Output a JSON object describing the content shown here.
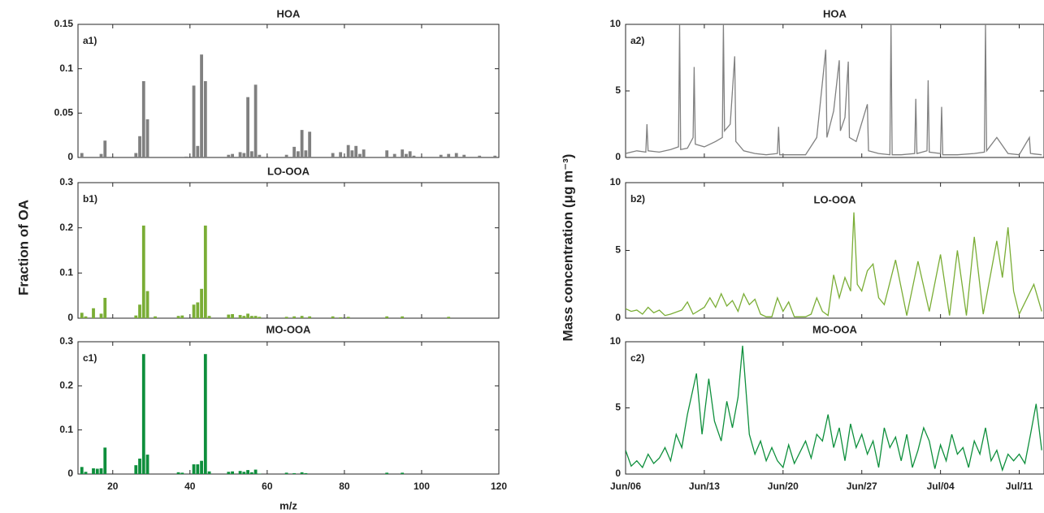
{
  "chart_data": [
    {
      "type": "bar",
      "title": "HOA",
      "label": "a1)",
      "color": "#808080",
      "x": [
        12,
        17,
        18,
        26,
        27,
        28,
        29,
        39,
        41,
        42,
        43,
        44,
        50,
        51,
        53,
        54,
        55,
        56,
        57,
        58,
        65,
        67,
        68,
        69,
        70,
        71,
        77,
        79,
        81,
        82,
        83,
        84,
        85,
        91,
        93,
        95,
        96,
        97,
        98,
        105,
        107,
        109,
        111,
        115,
        119
      ],
      "values": [
        0.005,
        0.004,
        0.019,
        0.005,
        0.024,
        0.086,
        0.043,
        0.001,
        0.081,
        0.013,
        0.116,
        0.086,
        0.003,
        0.004,
        0.006,
        0.005,
        0.068,
        0.007,
        0.082,
        0.003,
        0.003,
        0.012,
        0.007,
        0.031,
        0.008,
        0.029,
        0.005,
        0.006,
        0.014,
        0.008,
        0.013,
        0.004,
        0.009,
        0.008,
        0.004,
        0.009,
        0.004,
        0.007,
        0.002,
        0.003,
        0.004,
        0.005,
        0.003,
        0.002,
        0.002
      ],
      "xlim": [
        11,
        120
      ],
      "ylim": [
        0,
        0.15
      ],
      "yticks": [
        0,
        0.05,
        0.1,
        0.15
      ],
      "xticks": [
        20,
        40,
        60,
        80,
        100,
        120
      ],
      "xtick_labels": false
    },
    {
      "type": "bar",
      "title": "LO-OOA",
      "label": "b1)",
      "color": "#7aad35",
      "ylabel": "Fraction of OA",
      "x": [
        12,
        13,
        15,
        17,
        18,
        26,
        27,
        28,
        29,
        31,
        37,
        38,
        41,
        42,
        43,
        44,
        45,
        50,
        51,
        53,
        54,
        55,
        56,
        57,
        58,
        65,
        67,
        69,
        71,
        77,
        79,
        81,
        91,
        95,
        107
      ],
      "values": [
        0.012,
        0.004,
        0.022,
        0.01,
        0.045,
        0.006,
        0.03,
        0.205,
        0.06,
        0.004,
        0.005,
        0.006,
        0.03,
        0.035,
        0.065,
        0.205,
        0.005,
        0.008,
        0.009,
        0.007,
        0.005,
        0.01,
        0.005,
        0.005,
        0.003,
        0.003,
        0.004,
        0.005,
        0.004,
        0.004,
        0.002,
        0.003,
        0.004,
        0.004,
        0.003
      ],
      "xlim": [
        11,
        120
      ],
      "ylim": [
        0,
        0.3
      ],
      "yticks": [
        0,
        0.1,
        0.2,
        0.3
      ],
      "xticks": [
        20,
        40,
        60,
        80,
        100,
        120
      ],
      "xtick_labels": false
    },
    {
      "type": "bar",
      "title": "MO-OOA",
      "label": "c1)",
      "color": "#0e8f3c",
      "xlabel": "m/z",
      "x": [
        12,
        13,
        15,
        16,
        17,
        18,
        26,
        27,
        28,
        29,
        37,
        38,
        41,
        42,
        43,
        44,
        45,
        50,
        51,
        53,
        54,
        55,
        56,
        57,
        58,
        65,
        67,
        69,
        70,
        91,
        95
      ],
      "values": [
        0.016,
        0.005,
        0.013,
        0.012,
        0.013,
        0.06,
        0.02,
        0.035,
        0.272,
        0.044,
        0.004,
        0.003,
        0.022,
        0.022,
        0.03,
        0.272,
        0.006,
        0.005,
        0.006,
        0.007,
        0.005,
        0.009,
        0.004,
        0.01,
        0.001,
        0.003,
        0.002,
        0.004,
        0.002,
        0.003,
        0.003
      ],
      "xlim": [
        11,
        120
      ],
      "ylim": [
        0,
        0.3
      ],
      "yticks": [
        0,
        0.1,
        0.2,
        0.3
      ],
      "xticks": [
        20,
        40,
        60,
        80,
        100,
        120
      ]
    },
    {
      "type": "line",
      "title": "HOA",
      "label": "a2)",
      "color": "#808080",
      "x": [
        0,
        1,
        1.8,
        1.9,
        2,
        3,
        4,
        4.7,
        4.8,
        4.9,
        5.5,
        6,
        6.1,
        6.2,
        7,
        8,
        8.6,
        8.7,
        8.8,
        9.3,
        9.7,
        9.8,
        10.5,
        11.5,
        12.5,
        13.5,
        13.6,
        13.7,
        15,
        16,
        17,
        17.8,
        17.9,
        18.5,
        19,
        19.1,
        19.5,
        19.8,
        19.9,
        20.5,
        21.5,
        21.6,
        22.5,
        23.5,
        23.6,
        23.7,
        24.5,
        25.7,
        25.8,
        25.9,
        26.8,
        26.9,
        27,
        28,
        28.1,
        28.2,
        29.5,
        31,
        31.9,
        32,
        32.1,
        33,
        34,
        35,
        35.9,
        36,
        37
      ],
      "values": [
        0.3,
        0.5,
        0.4,
        2.5,
        0.5,
        0.4,
        0.6,
        0.8,
        10,
        0.6,
        0.7,
        1.5,
        6.8,
        1,
        0.8,
        1.2,
        1.5,
        10,
        2,
        2.5,
        7.6,
        1.2,
        0.5,
        0.3,
        0.2,
        0.3,
        2.3,
        0.2,
        0.2,
        0.2,
        1.5,
        8.1,
        1.5,
        3.5,
        7.3,
        2,
        3,
        7.2,
        1.5,
        1.2,
        4,
        0.5,
        0.3,
        0.2,
        10,
        0.2,
        0.2,
        0.3,
        4.4,
        0.3,
        0.5,
        5.8,
        0.4,
        0.3,
        3.8,
        0.2,
        0.2,
        0.3,
        0.4,
        10,
        0.5,
        1.5,
        0.3,
        0.2,
        1.5,
        0.3,
        0.2
      ],
      "xlim": [
        0,
        37.2
      ],
      "ylim": [
        0,
        10
      ],
      "yticks": [
        0,
        5,
        10
      ],
      "xticks": [
        0,
        7,
        14,
        21,
        28,
        35
      ],
      "xtick_labels": false
    },
    {
      "type": "line",
      "title": "LO-OOA",
      "label": "b2)",
      "color": "#7aad35",
      "ylabel": "Mass concentration (μg m⁻³)",
      "x": [
        0,
        0.5,
        1,
        1.5,
        2,
        2.5,
        3,
        3.5,
        4,
        5,
        5.5,
        6,
        7,
        7.5,
        8,
        8.5,
        9,
        9.5,
        10,
        10.5,
        11,
        11.5,
        12,
        12.5,
        13,
        13.5,
        14,
        14.5,
        15,
        16,
        16.5,
        17,
        17.5,
        18,
        18.5,
        19,
        19.5,
        20,
        20.3,
        20.6,
        21,
        21.5,
        22,
        22.5,
        23,
        24,
        25,
        26,
        27,
        28,
        28.8,
        29.5,
        30.3,
        31,
        31.8,
        33,
        33.5,
        34,
        34.5,
        35,
        36.3,
        37
      ],
      "values": [
        0.7,
        0.5,
        0.6,
        0.3,
        0.8,
        0.4,
        0.6,
        0.2,
        0.3,
        0.6,
        1.2,
        0.3,
        0.8,
        1.5,
        0.8,
        1.8,
        0.9,
        1.3,
        0.5,
        1.8,
        1,
        1.4,
        0.3,
        0.1,
        0.1,
        1.5,
        0.5,
        1.2,
        0.1,
        0.1,
        0.3,
        1.5,
        0.5,
        0.2,
        3.2,
        1.5,
        3,
        2,
        7.8,
        2.5,
        2,
        3.5,
        4,
        1.5,
        1,
        4.3,
        0.2,
        4.2,
        0.5,
        4.7,
        0.2,
        5,
        0.2,
        6,
        0.3,
        5.7,
        3,
        6.7,
        2,
        0.3,
        2.5,
        0.5
      ],
      "xlim": [
        0,
        37.2
      ],
      "ylim": [
        0,
        10
      ],
      "yticks": [
        0,
        5,
        10
      ],
      "xticks": [
        0,
        7,
        14,
        21,
        28,
        35
      ],
      "xtick_labels": false
    },
    {
      "type": "line",
      "title": "MO-OOA",
      "label": "c2)",
      "color": "#0e8f3c",
      "x": [
        0,
        0.5,
        1,
        1.5,
        2,
        2.5,
        3,
        3.5,
        4,
        4.5,
        5,
        5.5,
        6.3,
        6.8,
        7.4,
        7.9,
        8.5,
        9,
        9.5,
        10,
        10.4,
        11,
        11.5,
        12,
        12.5,
        13,
        13.5,
        14,
        14.5,
        15,
        16,
        16.5,
        17,
        17.5,
        18,
        18.5,
        19,
        19.5,
        20,
        20.5,
        21,
        21.5,
        22,
        22.5,
        23,
        23.5,
        24,
        24.5,
        25,
        25.5,
        26,
        26.5,
        27,
        27.5,
        28,
        28.5,
        29,
        29.5,
        30,
        30.5,
        31,
        31.5,
        32,
        32.5,
        33,
        33.5,
        34,
        34.5,
        35,
        35.5,
        36,
        36.5,
        37
      ],
      "values": [
        1.8,
        0.6,
        1,
        0.5,
        1.5,
        0.8,
        1.2,
        2,
        1,
        3,
        2,
        4.5,
        7.6,
        3,
        7.2,
        4,
        2.5,
        5.5,
        3.5,
        5.8,
        9.7,
        3,
        1.5,
        2.5,
        1,
        2,
        1,
        0.5,
        2.2,
        0.8,
        2.5,
        1.2,
        3,
        2.5,
        4.5,
        2,
        3.5,
        1,
        3.8,
        2,
        3,
        1.5,
        2.5,
        0.5,
        3.5,
        2,
        2.8,
        1,
        3,
        0.5,
        1.8,
        3.5,
        2.5,
        0.4,
        2.2,
        1,
        3,
        1.5,
        2,
        0.5,
        2.5,
        1.5,
        3.5,
        1,
        1.8,
        0.3,
        1.5,
        1,
        1.5,
        0.8,
        3,
        5.3,
        1.8
      ],
      "xlim": [
        0,
        37.2
      ],
      "ylim": [
        0,
        10
      ],
      "yticks": [
        0,
        5,
        10
      ],
      "xticks": [
        {
          "value": 0,
          "label": "Jun/06"
        },
        {
          "value": 7,
          "label": "Jun/13"
        },
        {
          "value": 14,
          "label": "Jun/20"
        },
        {
          "value": 21,
          "label": "Jun/27"
        },
        {
          "value": 28,
          "label": "Jul/04"
        },
        {
          "value": 35,
          "label": "Jul/11"
        }
      ]
    }
  ]
}
